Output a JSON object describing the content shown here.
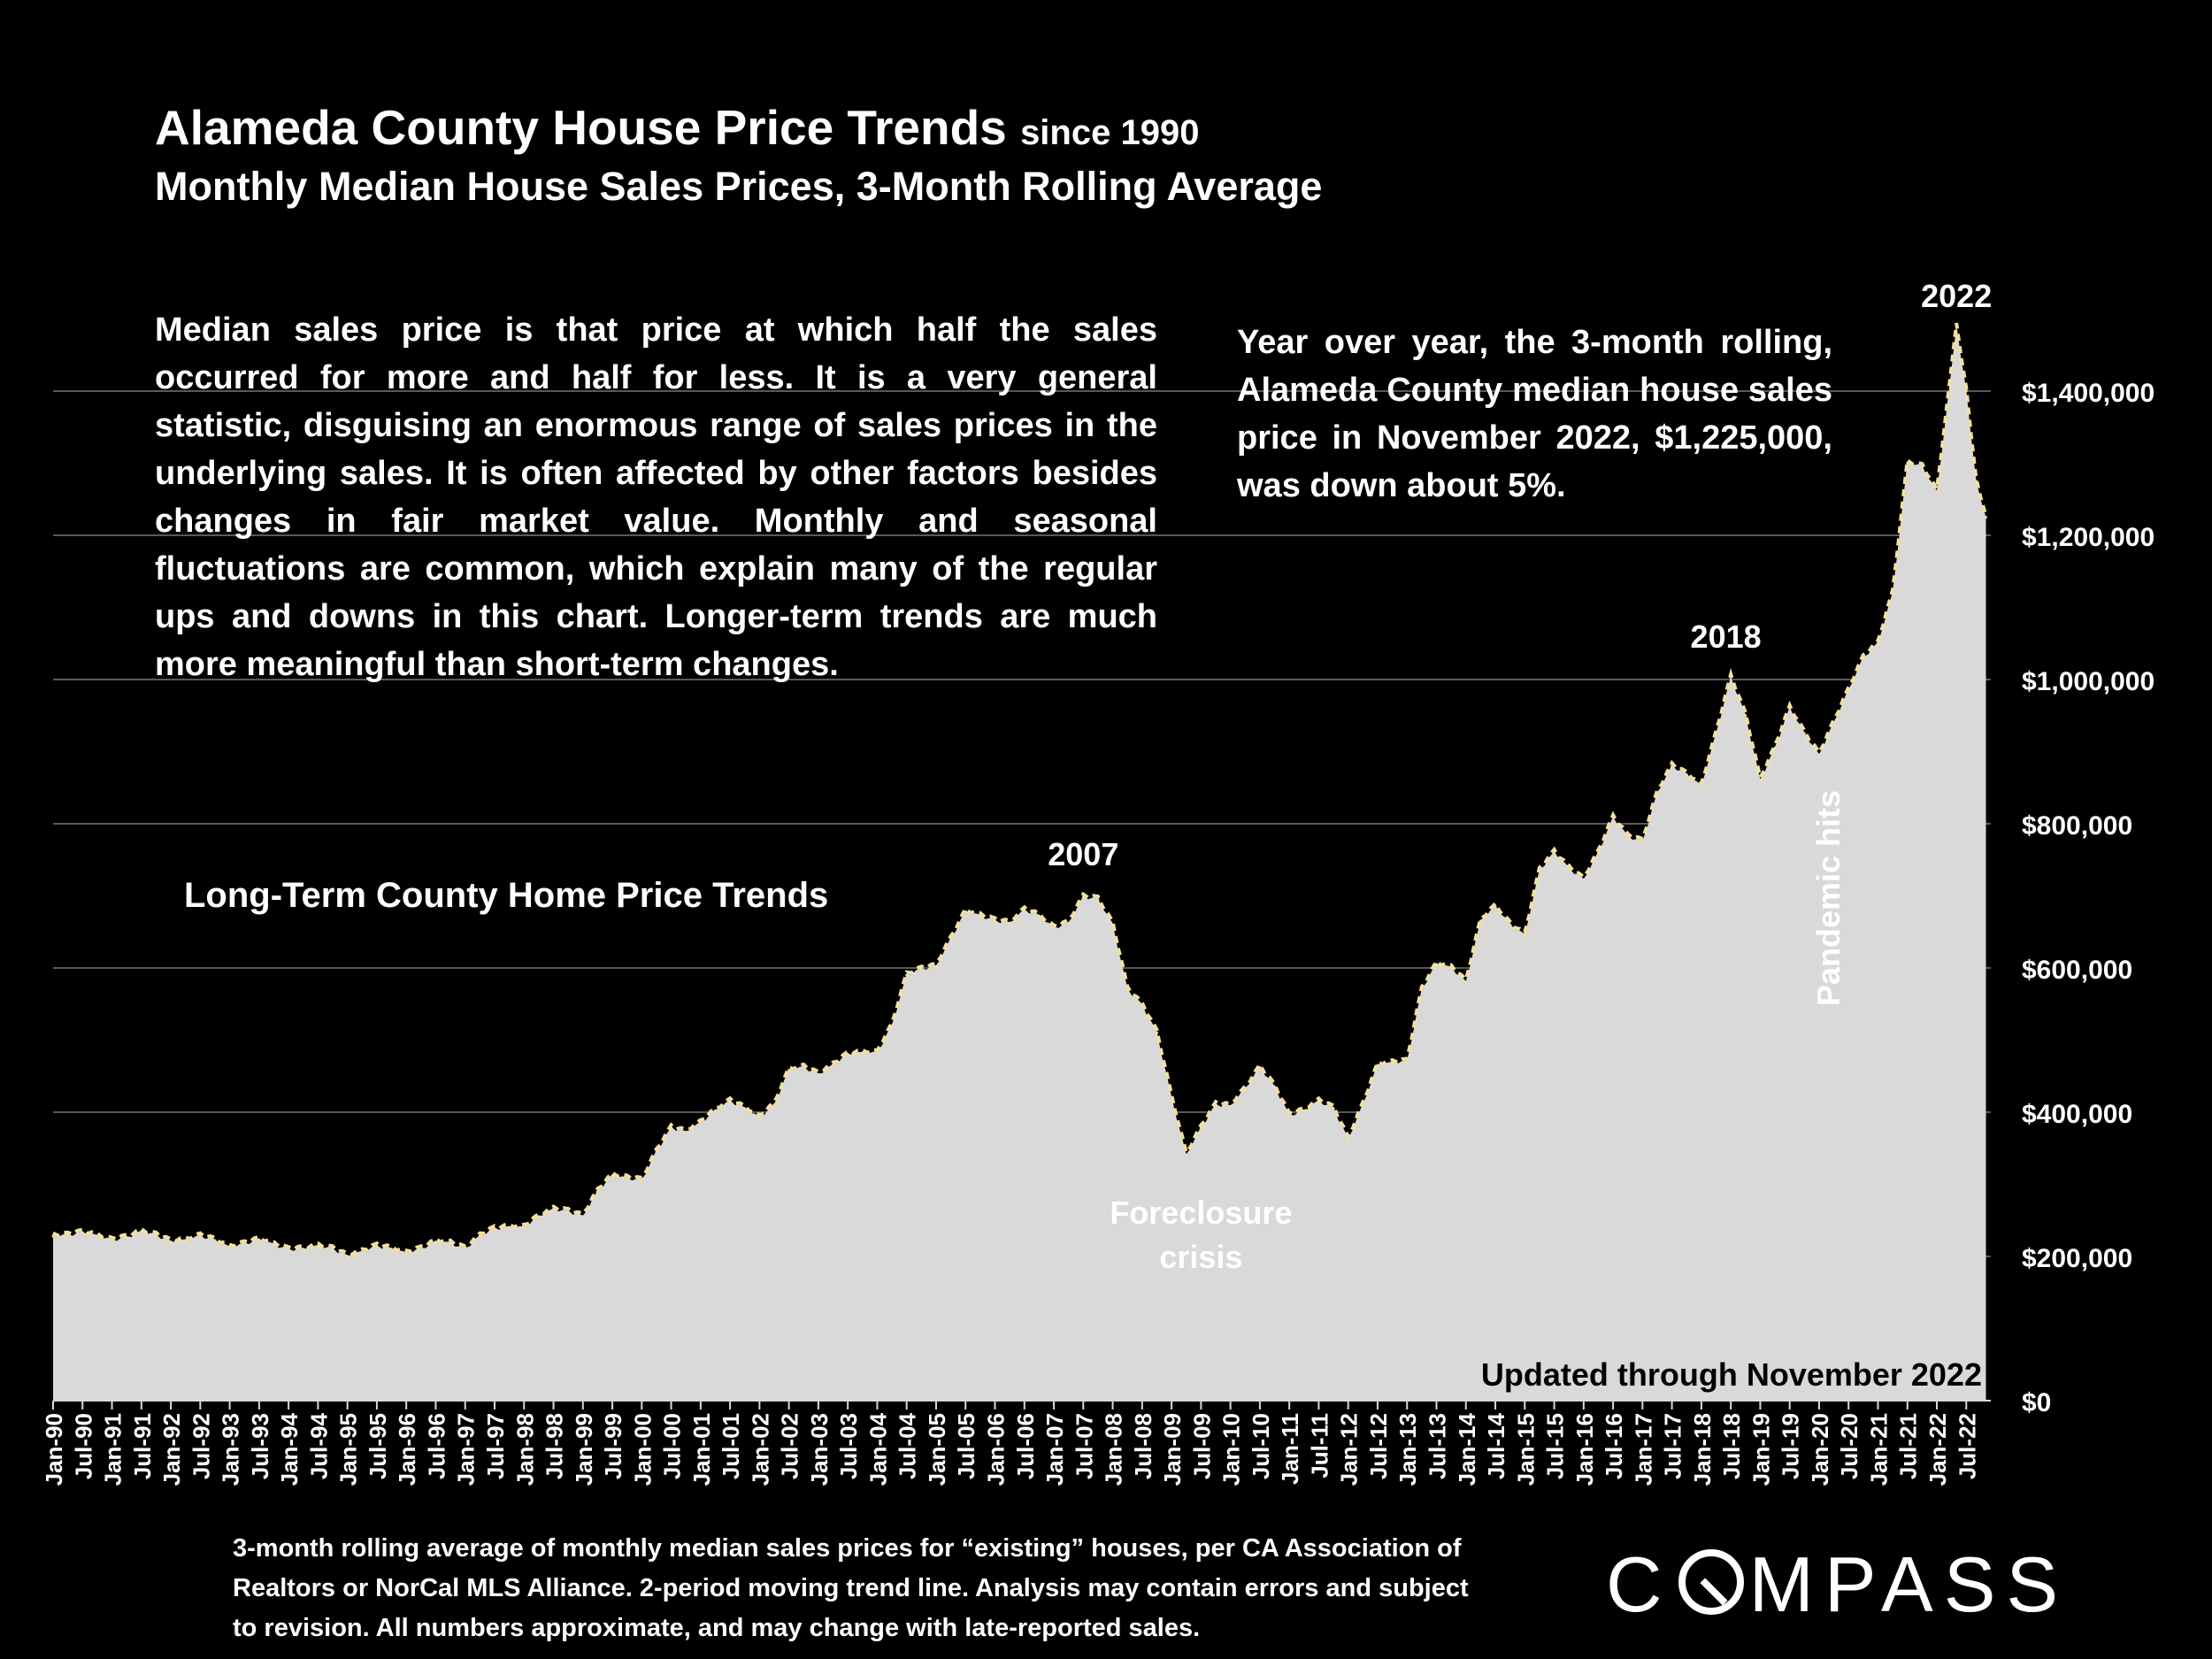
{
  "header": {
    "title": "Alameda County House Price Trends",
    "title_suffix": "since 1990",
    "subtitle": "Monthly Median House Sales Prices, 3-Month Rolling Average"
  },
  "description": "Median sales price is that price at which half the sales occurred for more and half for less. It is a very general statistic, disguising an enormous range of sales prices in the underlying sales. It is often affected by other factors besides changes in fair market value. Monthly and seasonal fluctuations are common, which explain many of the regular ups and downs in this chart. Longer-term trends are much more meaningful than short-term changes.",
  "yoy_note": "Year over year, the 3-month rolling, Alameda County median house sales price in November 2022, $1,225,000, was down about 5%.",
  "trend_label": "Long-Term County Home Price Trends",
  "updated": "Updated through November 2022",
  "footnote": "3-month rolling average of monthly median sales prices for “existing” houses, per CA Association of Realtors or NorCal MLS Alliance. 2-period moving trend line. Analysis may contain errors and subject to revision. All numbers approximate, and may change with late-reported sales.",
  "logo": {
    "text_left": "C",
    "text_right": "MPASS"
  },
  "colors": {
    "background": "#000000",
    "area": "#d9d9d9",
    "trend_line": "#f2e0a0",
    "gridline": "#595959"
  },
  "chart_data": {
    "type": "area",
    "x_start": "Jan-90",
    "x_end": "Nov-22",
    "x_tick_labels": [
      "Jan-90",
      "Jul-90",
      "Jan-91",
      "Jul-91",
      "Jan-92",
      "Jul-92",
      "Jan-93",
      "Jul-93",
      "Jan-94",
      "Jul-94",
      "Jan-95",
      "Jul-95",
      "Jan-96",
      "Jul-96",
      "Jan-97",
      "Jul-97",
      "Jan-98",
      "Jul-98",
      "Jan-99",
      "Jul-99",
      "Jan-00",
      "Jul-00",
      "Jan-01",
      "Jul-01",
      "Jan-02",
      "Jul-02",
      "Jan-03",
      "Jul-03",
      "Jan-04",
      "Jul-04",
      "Jan-05",
      "Jul-05",
      "Jan-06",
      "Jul-06",
      "Jan-07",
      "Jul-07",
      "Jan-08",
      "Jul-08",
      "Jan-09",
      "Jul-09",
      "Jan-10",
      "Jul-10",
      "Jan-11",
      "Jul-11",
      "Jan-12",
      "Jul-12",
      "Jan-13",
      "Jul-13",
      "Jan-14",
      "Jul-14",
      "Jan-15",
      "Jul-15",
      "Jan-16",
      "Jul-16",
      "Jan-17",
      "Jul-17",
      "Jan-18",
      "Jul-18",
      "Jan-19",
      "Jul-19",
      "Jan-20",
      "Jul-20",
      "Jan-21",
      "Jul-21",
      "Jan-22",
      "Jul-22"
    ],
    "y_tick_labels": [
      "$0",
      "$200,000",
      "$400,000",
      "$600,000",
      "$800,000",
      "$1,000,000",
      "$1,200,000",
      "$1,400,000"
    ],
    "ylim": [
      0,
      1500000
    ],
    "y_axis_position": "right",
    "grid": true,
    "series": [
      {
        "style": "area with dashed 2-period moving trend line",
        "points": [
          [
            "Jan-90",
            228000
          ],
          [
            "Apr-90",
            229000
          ],
          [
            "Jul-90",
            233000
          ],
          [
            "Oct-90",
            228000
          ],
          [
            "Jan-91",
            222000
          ],
          [
            "Apr-91",
            226000
          ],
          [
            "Jul-91",
            234000
          ],
          [
            "Oct-91",
            229000
          ],
          [
            "Jan-92",
            220000
          ],
          [
            "Apr-92",
            222000
          ],
          [
            "Jul-92",
            228000
          ],
          [
            "Oct-92",
            222000
          ],
          [
            "Jan-93",
            212000
          ],
          [
            "Apr-93",
            217000
          ],
          [
            "Jul-93",
            223000
          ],
          [
            "Oct-93",
            216000
          ],
          [
            "Jan-94",
            209000
          ],
          [
            "Apr-94",
            210000
          ],
          [
            "Jul-94",
            214000
          ],
          [
            "Oct-94",
            210000
          ],
          [
            "Jan-95",
            200000
          ],
          [
            "Apr-95",
            206000
          ],
          [
            "Jul-95",
            214000
          ],
          [
            "Oct-95",
            210000
          ],
          [
            "Jan-96",
            204000
          ],
          [
            "Apr-96",
            210000
          ],
          [
            "Jul-96",
            220000
          ],
          [
            "Oct-96",
            218000
          ],
          [
            "Jan-97",
            210000
          ],
          [
            "Apr-97",
            228000
          ],
          [
            "Jul-97",
            238000
          ],
          [
            "Oct-97",
            240000
          ],
          [
            "Jan-98",
            240000
          ],
          [
            "Apr-98",
            255000
          ],
          [
            "Jul-98",
            265000
          ],
          [
            "Oct-98",
            262000
          ],
          [
            "Jan-99",
            255000
          ],
          [
            "Apr-99",
            290000
          ],
          [
            "Jul-99",
            312000
          ],
          [
            "Oct-99",
            308000
          ],
          [
            "Jan-00",
            305000
          ],
          [
            "Apr-00",
            345000
          ],
          [
            "Jul-00",
            378000
          ],
          [
            "Oct-00",
            372000
          ],
          [
            "Jan-01",
            385000
          ],
          [
            "Apr-01",
            402000
          ],
          [
            "Jul-01",
            415000
          ],
          [
            "Oct-01",
            405000
          ],
          [
            "Jan-02",
            392000
          ],
          [
            "Apr-02",
            410000
          ],
          [
            "Jul-02",
            458000
          ],
          [
            "Oct-02",
            462000
          ],
          [
            "Jan-03",
            452000
          ],
          [
            "Apr-03",
            465000
          ],
          [
            "Jul-03",
            480000
          ],
          [
            "Oct-03",
            482000
          ],
          [
            "Jan-04",
            482000
          ],
          [
            "Apr-04",
            520000
          ],
          [
            "Jul-04",
            590000
          ],
          [
            "Oct-04",
            598000
          ],
          [
            "Jan-05",
            602000
          ],
          [
            "Apr-05",
            640000
          ],
          [
            "Jul-05",
            678000
          ],
          [
            "Oct-05",
            672000
          ],
          [
            "Jan-06",
            665000
          ],
          [
            "Apr-06",
            662000
          ],
          [
            "Jul-06",
            680000
          ],
          [
            "Oct-06",
            672000
          ],
          [
            "Jan-07",
            655000
          ],
          [
            "Apr-07",
            662000
          ],
          [
            "Jul-07",
            698000
          ],
          [
            "Oct-07",
            695000
          ],
          [
            "Jan-08",
            660000
          ],
          [
            "Apr-08",
            570000
          ],
          [
            "Jul-08",
            548000
          ],
          [
            "Oct-08",
            510000
          ],
          [
            "Jan-09",
            420000
          ],
          [
            "Apr-09",
            340000
          ],
          [
            "Jul-09",
            378000
          ],
          [
            "Oct-09",
            410000
          ],
          [
            "Jan-10",
            408000
          ],
          [
            "Apr-10",
            432000
          ],
          [
            "Jul-10",
            462000
          ],
          [
            "Oct-10",
            435000
          ],
          [
            "Jan-11",
            395000
          ],
          [
            "Apr-11",
            402000
          ],
          [
            "Jul-11",
            415000
          ],
          [
            "Oct-11",
            405000
          ],
          [
            "Jan-12",
            362000
          ],
          [
            "Apr-12",
            410000
          ],
          [
            "Jul-12",
            465000
          ],
          [
            "Oct-12",
            468000
          ],
          [
            "Jan-13",
            470000
          ],
          [
            "Apr-13",
            570000
          ],
          [
            "Jul-13",
            605000
          ],
          [
            "Oct-13",
            600000
          ],
          [
            "Jan-14",
            580000
          ],
          [
            "Apr-14",
            665000
          ],
          [
            "Jul-14",
            685000
          ],
          [
            "Oct-14",
            660000
          ],
          [
            "Jan-15",
            645000
          ],
          [
            "Apr-15",
            735000
          ],
          [
            "Jul-15",
            760000
          ],
          [
            "Oct-15",
            738000
          ],
          [
            "Jan-16",
            722000
          ],
          [
            "Apr-16",
            760000
          ],
          [
            "Jul-16",
            808000
          ],
          [
            "Oct-16",
            782000
          ],
          [
            "Jan-17",
            775000
          ],
          [
            "Apr-17",
            842000
          ],
          [
            "Jul-17",
            880000
          ],
          [
            "Oct-17",
            868000
          ],
          [
            "Jan-18",
            852000
          ],
          [
            "Apr-18",
            925000
          ],
          [
            "Jul-18",
            1003000
          ],
          [
            "Oct-18",
            950000
          ],
          [
            "Jan-19",
            860000
          ],
          [
            "Apr-19",
            905000
          ],
          [
            "Jul-19",
            960000
          ],
          [
            "Oct-19",
            925000
          ],
          [
            "Jan-20",
            895000
          ],
          [
            "Apr-20",
            940000
          ],
          [
            "Jul-20",
            985000
          ],
          [
            "Oct-20",
            1030000
          ],
          [
            "Jan-21",
            1050000
          ],
          [
            "Apr-21",
            1120000
          ],
          [
            "Jul-21",
            1300000
          ],
          [
            "Oct-21",
            1295000
          ],
          [
            "Jan-22",
            1260000
          ],
          [
            "Apr-22",
            1430000
          ],
          [
            "May-22",
            1490000
          ],
          [
            "Jul-22",
            1400000
          ],
          [
            "Sep-22",
            1275000
          ],
          [
            "Nov-22",
            1225000
          ]
        ]
      }
    ],
    "annotations": [
      {
        "text": "2007",
        "x": "Jul-07"
      },
      {
        "text": "Foreclosure",
        "x": "Jul-09"
      },
      {
        "text": "crisis",
        "x": "Jul-09"
      },
      {
        "text": "2018",
        "x": "Jun-18"
      },
      {
        "text": "Pandemic hits",
        "x": "Mar-20"
      },
      {
        "text": "2022",
        "x": "May-22"
      }
    ]
  }
}
